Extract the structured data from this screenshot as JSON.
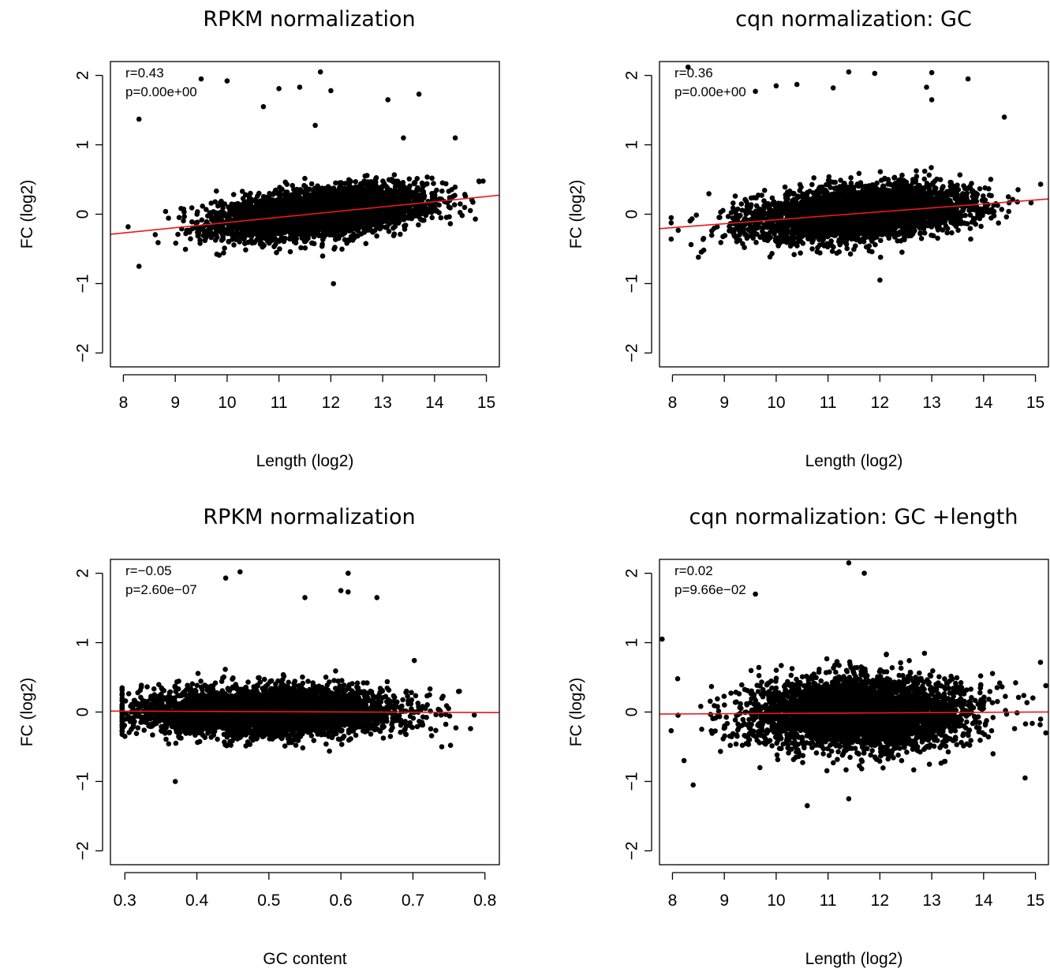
{
  "colors": {
    "points": "#000000",
    "fit_line": "#e8191a"
  },
  "chart_data": [
    {
      "type": "scatter",
      "title": "RPKM normalization",
      "xlabel": "Length (log2)",
      "ylabel": "FC (log2)",
      "xlim": [
        7.75,
        15.25
      ],
      "ylim": [
        -2.2,
        2.2
      ],
      "xticks": [
        8,
        9,
        10,
        11,
        12,
        13,
        14,
        15
      ],
      "yticks": [
        -2,
        -1,
        0,
        1,
        2
      ],
      "xtick_labels": [
        "8",
        "9",
        "10",
        "11",
        "12",
        "13",
        "14",
        "15"
      ],
      "ytick_labels": [
        "−2",
        "−1",
        "0",
        "1",
        "2"
      ],
      "annotations": [
        "r=0.43",
        "p=0.00e+00"
      ],
      "regression": {
        "slope": 0.075,
        "intercept": -0.87
      },
      "points": {
        "center_x": 11.8,
        "sd_x": 1.0,
        "n": 4000,
        "residual_sd": 0.16
      },
      "outliers": [
        [
          8.3,
          1.37
        ],
        [
          9.5,
          1.95
        ],
        [
          10.0,
          1.92
        ],
        [
          11.0,
          1.81
        ],
        [
          11.4,
          1.83
        ],
        [
          11.8,
          2.05
        ],
        [
          12.0,
          1.78
        ],
        [
          13.7,
          1.73
        ],
        [
          13.1,
          1.65
        ],
        [
          12.05,
          -1.0
        ],
        [
          8.3,
          -0.75
        ],
        [
          10.7,
          1.55
        ],
        [
          11.7,
          1.28
        ],
        [
          13.4,
          1.1
        ],
        [
          14.4,
          1.1
        ]
      ]
    },
    {
      "type": "scatter",
      "title": "cqn normalization: GC",
      "xlabel": "Length (log2)",
      "ylabel": "FC (log2)",
      "xlim": [
        7.75,
        15.25
      ],
      "ylim": [
        -2.2,
        2.2
      ],
      "xticks": [
        8,
        9,
        10,
        11,
        12,
        13,
        14,
        15
      ],
      "yticks": [
        -2,
        -1,
        0,
        1,
        2
      ],
      "xtick_labels": [
        "8",
        "9",
        "10",
        "11",
        "12",
        "13",
        "14",
        "15"
      ],
      "ytick_labels": [
        "−2",
        "−1",
        "0",
        "1",
        "2"
      ],
      "annotations": [
        "r=0.36",
        "p=0.00e+00"
      ],
      "regression": {
        "slope": 0.057,
        "intercept": -0.65
      },
      "points": {
        "center_x": 11.6,
        "sd_x": 1.05,
        "n": 4000,
        "residual_sd": 0.18
      },
      "outliers": [
        [
          8.3,
          2.12
        ],
        [
          10.0,
          1.85
        ],
        [
          10.4,
          1.87
        ],
        [
          11.1,
          1.82
        ],
        [
          11.4,
          2.05
        ],
        [
          11.9,
          2.03
        ],
        [
          12.9,
          1.83
        ],
        [
          13.0,
          2.04
        ],
        [
          13.0,
          1.65
        ],
        [
          13.7,
          1.95
        ],
        [
          12.0,
          -0.95
        ],
        [
          9.6,
          1.77
        ],
        [
          8.5,
          -0.62
        ],
        [
          14.4,
          1.4
        ]
      ]
    },
    {
      "type": "scatter",
      "title": "RPKM normalization",
      "xlabel": "GC content",
      "ylabel": "FC (log2)",
      "xlim": [
        0.28,
        0.82
      ],
      "ylim": [
        -2.2,
        2.2
      ],
      "xticks": [
        0.3,
        0.4,
        0.5,
        0.6,
        0.7,
        0.8
      ],
      "yticks": [
        -2,
        -1,
        0,
        1,
        2
      ],
      "xtick_labels": [
        "0.3",
        "0.4",
        "0.5",
        "0.6",
        "0.7",
        "0.8"
      ],
      "ytick_labels": [
        "−2",
        "−1",
        "0",
        "1",
        "2"
      ],
      "annotations": [
        "r=−0.05",
        "p=2.60e−07"
      ],
      "regression": {
        "slope": -0.04,
        "intercept": 0.025
      },
      "points": {
        "center_x": 0.5,
        "sd_x": 0.085,
        "n": 4500,
        "residual_sd": 0.17
      },
      "outliers": [
        [
          0.44,
          1.93
        ],
        [
          0.46,
          2.02
        ],
        [
          0.6,
          1.75
        ],
        [
          0.61,
          1.73
        ],
        [
          0.61,
          2.0
        ],
        [
          0.65,
          1.65
        ],
        [
          0.55,
          1.65
        ],
        [
          0.37,
          -1.0
        ],
        [
          0.78,
          -0.24
        ],
        [
          0.74,
          -0.5
        ],
        [
          0.3,
          -0.35
        ]
      ]
    },
    {
      "type": "scatter",
      "title": "cqn normalization: GC +length",
      "xlabel": "Length (log2)",
      "ylabel": "FC (log2)",
      "xlim": [
        7.75,
        15.25
      ],
      "ylim": [
        -2.2,
        2.2
      ],
      "xticks": [
        8,
        9,
        10,
        11,
        12,
        13,
        14,
        15
      ],
      "yticks": [
        -2,
        -1,
        0,
        1,
        2
      ],
      "xtick_labels": [
        "8",
        "9",
        "10",
        "11",
        "12",
        "13",
        "14",
        "15"
      ],
      "ytick_labels": [
        "−2",
        "−1",
        "0",
        "1",
        "2"
      ],
      "annotations": [
        "r=0.02",
        "p=9.66e−02"
      ],
      "regression": {
        "slope": 0.004,
        "intercept": -0.06
      },
      "points": {
        "center_x": 11.6,
        "sd_x": 1.05,
        "n": 4000,
        "residual_sd": 0.25
      },
      "outliers": [
        [
          11.4,
          2.15
        ],
        [
          11.7,
          2.0
        ],
        [
          10.6,
          -1.35
        ],
        [
          11.4,
          -1.25
        ],
        [
          8.4,
          -1.05
        ],
        [
          14.8,
          -0.95
        ],
        [
          15.2,
          0.38
        ],
        [
          15.2,
          -0.3
        ],
        [
          7.8,
          1.05
        ],
        [
          9.6,
          1.7
        ],
        [
          8.1,
          0.48
        ]
      ]
    }
  ]
}
